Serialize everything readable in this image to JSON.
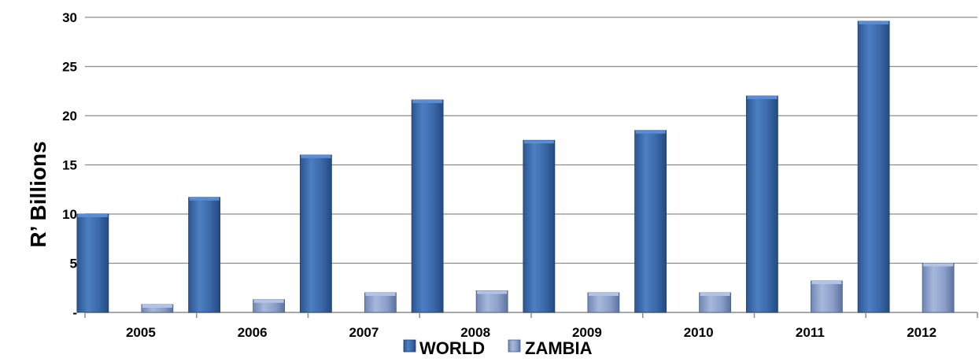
{
  "chart_data": {
    "type": "bar",
    "title": "",
    "xlabel": "",
    "ylabel": "R’ Billions",
    "categories": [
      "2005",
      "2006",
      "2007",
      "2008",
      "2009",
      "2010",
      "2011",
      "2012"
    ],
    "series": [
      {
        "name": "WORLD",
        "values": [
          10.0,
          11.7,
          16.0,
          21.6,
          17.5,
          18.5,
          22.0,
          29.6
        ],
        "color": "#3a67a8"
      },
      {
        "name": "ZAMBIA",
        "values": [
          0.8,
          1.3,
          2.0,
          2.2,
          2.0,
          2.0,
          3.2,
          5.0
        ],
        "color": "#8a9fc9"
      }
    ],
    "ylim": [
      0,
      30
    ],
    "yticks": [
      0,
      5,
      10,
      15,
      20,
      25,
      30
    ],
    "ytick_labels": [
      "-",
      "5",
      "10",
      "15",
      "20",
      "25",
      "30"
    ],
    "grid": true,
    "legend_position": "bottom"
  }
}
